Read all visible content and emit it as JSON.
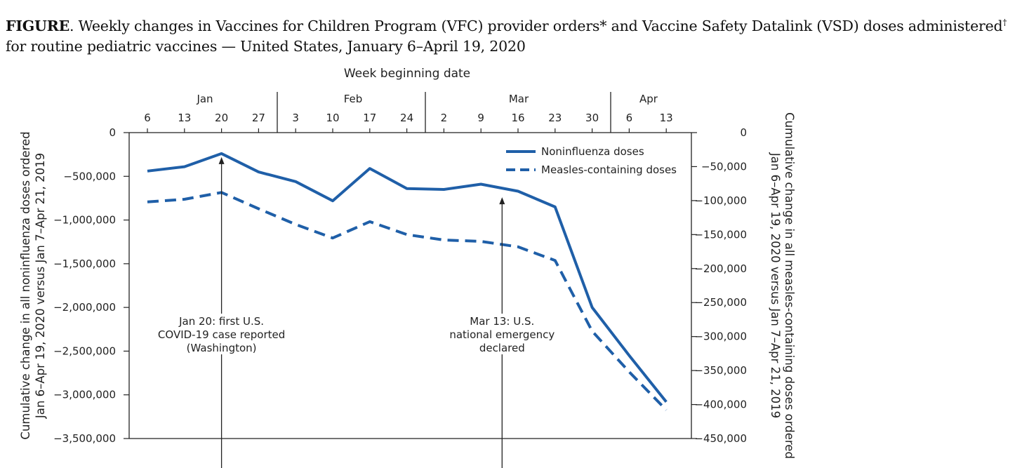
{
  "figure": {
    "label": "FIGURE",
    "title": ". Weekly changes in Vaccines for Children Program (VFC) provider orders* and Vaccine Safety Datalink (VSD) doses administered",
    "dagger": "†",
    "title_line2": "for routine pediatric vaccines — United States, January 6–April 19, 2020"
  },
  "chart_data": {
    "type": "line",
    "xlabel": "Week beginning date",
    "months": [
      "Jan",
      "Feb",
      "Mar",
      "Apr"
    ],
    "x": [
      "6",
      "13",
      "20",
      "27",
      "3",
      "10",
      "17",
      "24",
      "2",
      "9",
      "16",
      "23",
      "30",
      "6",
      "13"
    ],
    "ylabel_left": [
      "Cumulative change in all noninfluenza doses ordered",
      "Jan 6–Apr 19, 2020 versus Jan 7–Apr 21, 2019"
    ],
    "ylabel_right": [
      "Cumulative change in all measles-containing doses ordered",
      "Jan 6–Apr 19, 2020 versus Jan 7–Apr 21, 2019"
    ],
    "yticks_left": [
      "0",
      "−500,000",
      "−1,000,000",
      "−1,500,000",
      "−2,000,000",
      "−2,500,000",
      "−3,000,000",
      "−3,500,000"
    ],
    "yticks_right": [
      "0",
      "−50,000",
      "−100,000",
      "−150,000",
      "−200,000",
      "−250,000",
      "−300,000",
      "−350,000",
      "−400,000",
      "−450,000"
    ],
    "ylim_left": [
      -3500000,
      0
    ],
    "ylim_right": [
      -450000,
      0
    ],
    "legend_position": "top-right",
    "series": [
      {
        "name": "Noninfluenza doses",
        "axis": "left",
        "style": "solid",
        "color": "#1f5fa8",
        "values": [
          -440000,
          -390000,
          -240000,
          -450000,
          -560000,
          -780000,
          -410000,
          -640000,
          -650000,
          -590000,
          -670000,
          -850000,
          -2000000,
          -2550000,
          -3080000
        ]
      },
      {
        "name": "Measles-containing doses",
        "axis": "right",
        "style": "dashed",
        "color": "#1f5fa8",
        "values": [
          -102000,
          -98000,
          -88000,
          -112000,
          -135000,
          -155000,
          -131000,
          -150000,
          -158000,
          -160000,
          -168000,
          -188000,
          -292000,
          -352000,
          -408000
        ]
      }
    ],
    "annotations": [
      {
        "lines": [
          "Jan 20: first U.S.",
          "COVID-19 case reported",
          "(Washington)"
        ],
        "x": 2,
        "arrow_to": -280000
      },
      {
        "lines": [
          "Mar 13: U.S.",
          "national emergency",
          "declared"
        ],
        "x": 9.57,
        "arrow_to": -740000
      }
    ]
  }
}
